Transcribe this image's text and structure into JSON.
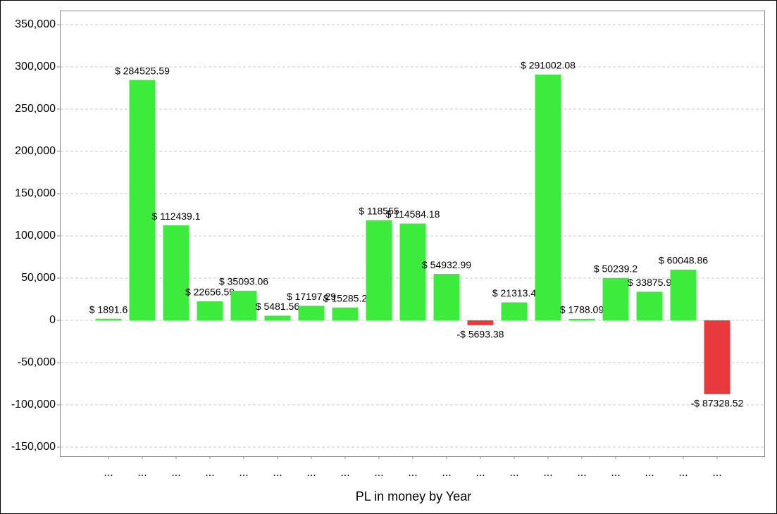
{
  "chart_data": {
    "type": "bar",
    "x_label": "PL in money by Year",
    "categories": [
      "...",
      "...",
      "...",
      "...",
      "...",
      "...",
      "...",
      "...",
      "...",
      "...",
      "...",
      "...",
      "...",
      "...",
      "...",
      "...",
      "...",
      "...",
      "..."
    ],
    "values": [
      1891.6,
      284525.59,
      112439.1,
      22656.59,
      35093.06,
      5481.56,
      17197.29,
      15285.2,
      118555,
      114584.18,
      54932.99,
      -5693.38,
      21313.4,
      291002.08,
      1788.09,
      50239.2,
      33875.9,
      60048.86,
      -87328.52
    ],
    "value_labels": [
      "$ 1891.6",
      "$ 284525.59",
      "$ 112439.1",
      "$ 22656.59",
      "$ 35093.06",
      "$ 5481.56",
      "$ 17197.29",
      "$ 15285.2",
      "$ 118555",
      "$ 114584.18",
      "$ 54932.99",
      "-$ 5693.38",
      "$ 21313.4",
      "$ 291002.08",
      "$ 1788.09",
      "$ 50239.2",
      "$ 33875.9",
      "$ 60048.86",
      "-$ 87328.52"
    ],
    "color": "#3ceb3c",
    "negative_color": "#e8393d",
    "ylim": [
      -160833,
      366667
    ],
    "yticks": [
      {
        "value": -150000,
        "label": "-150,000"
      },
      {
        "value": -100000,
        "label": "-100,000"
      },
      {
        "value": -50000,
        "label": "-50,000"
      },
      0,
      {
        "value": 50000,
        "label": "50,000"
      },
      {
        "value": 100000,
        "label": "100,000"
      },
      {
        "value": 150000,
        "label": "150,000"
      },
      {
        "value": 200000,
        "label": "200,000"
      },
      {
        "value": 250000,
        "label": "250,000"
      },
      {
        "value": 300000,
        "label": "300,000"
      },
      {
        "value": 350000,
        "label": "350,000"
      }
    ],
    "grid": true
  }
}
